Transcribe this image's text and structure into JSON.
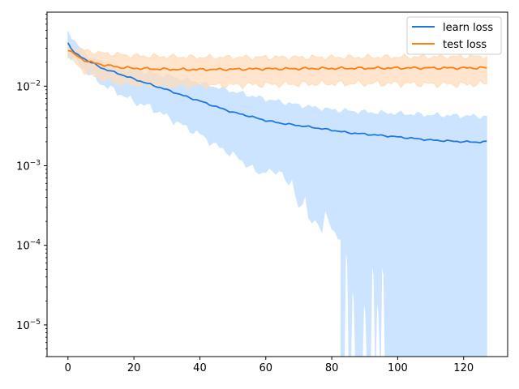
{
  "chart_data": {
    "type": "line",
    "title": "",
    "xlabel": "",
    "ylabel": "",
    "xlim": [
      -6.35,
      133.35
    ],
    "ylim": [
      4e-06,
      0.085
    ],
    "yscale": "log",
    "grid": false,
    "legend_position": "top-right",
    "x_ticks": [
      0,
      20,
      40,
      60,
      80,
      100,
      120
    ],
    "x_tick_labels": [
      "0",
      "20",
      "40",
      "60",
      "80",
      "100",
      "120"
    ],
    "y_ticks": [
      1e-05,
      0.0001,
      0.001,
      0.01
    ],
    "y_tick_labels": [
      "10",
      "10",
      "10",
      "10"
    ],
    "y_tick_exponents": [
      "−5",
      "−4",
      "−3",
      "−2"
    ],
    "series": [
      {
        "name": "learn loss",
        "color": "#1f77e0",
        "band_color": "#cce4ff",
        "x_range": [
          0,
          127
        ],
        "mean_key_x": [
          0,
          2,
          5,
          8,
          10,
          15,
          20,
          25,
          30,
          35,
          40,
          45,
          50,
          55,
          60,
          65,
          70,
          75,
          80,
          85,
          90,
          95,
          100,
          105,
          110,
          115,
          120,
          125,
          127
        ],
        "mean_key_y": [
          0.035,
          0.026,
          0.022,
          0.019,
          0.017,
          0.0145,
          0.0123,
          0.0105,
          0.009,
          0.0076,
          0.0065,
          0.0055,
          0.0047,
          0.0042,
          0.0037,
          0.0034,
          0.0032,
          0.003,
          0.0028,
          0.0026,
          0.0025,
          0.0024,
          0.0023,
          0.0022,
          0.0021,
          0.00205,
          0.002,
          0.00198,
          0.002
        ],
        "upper_key_x": [
          0,
          5,
          10,
          15,
          20,
          30,
          40,
          50,
          60,
          70,
          80,
          90,
          100,
          110,
          120,
          127
        ],
        "upper_key_y": [
          0.048,
          0.025,
          0.02,
          0.017,
          0.016,
          0.0135,
          0.011,
          0.0085,
          0.0068,
          0.0057,
          0.005,
          0.0047,
          0.0045,
          0.0043,
          0.0042,
          0.0041
        ],
        "lower_key_x": [
          0,
          3,
          6,
          10,
          15,
          20,
          25,
          30,
          35,
          40,
          45,
          50,
          55,
          58,
          60,
          62,
          65,
          67,
          68,
          70,
          72,
          73,
          75,
          77,
          78,
          80,
          82,
          82.8
        ],
        "lower_key_y": [
          0.025,
          0.02,
          0.015,
          0.011,
          0.0085,
          0.0065,
          0.0055,
          0.0042,
          0.0032,
          0.0025,
          0.0018,
          0.0014,
          0.001,
          0.0008,
          0.0009,
          0.0008,
          0.0009,
          0.0005,
          0.0007,
          0.0003,
          0.0004,
          0.0002,
          0.00022,
          0.00015,
          0.00025,
          0.00018,
          0.00012,
          0.00012
        ],
        "lower_spikes": [
          [
            84.5,
            9e-05
          ],
          [
            86.5,
            3e-05
          ],
          [
            90,
            2e-05
          ],
          [
            92.5,
            6e-05
          ],
          [
            94,
            2e-05
          ],
          [
            95.5,
            6e-05
          ]
        ]
      },
      {
        "name": "test loss",
        "color": "#ff7f0e",
        "band_color": "#ffdcbc",
        "x_range": [
          0,
          127
        ],
        "mean_key_x": [
          0,
          2,
          4,
          6,
          8,
          10,
          12,
          14,
          16,
          18,
          20,
          25,
          30,
          35,
          40,
          45,
          50,
          55,
          60,
          65,
          70,
          75,
          80,
          90,
          100,
          110,
          120,
          127
        ],
        "mean_key_y": [
          0.029,
          0.025,
          0.022,
          0.0205,
          0.0195,
          0.0188,
          0.0182,
          0.0177,
          0.0172,
          0.017,
          0.0168,
          0.0165,
          0.0163,
          0.0162,
          0.0162,
          0.0162,
          0.0163,
          0.0164,
          0.0165,
          0.0165,
          0.0166,
          0.0167,
          0.0167,
          0.0168,
          0.0169,
          0.0169,
          0.0169,
          0.017
        ],
        "upper_key_x": [
          0,
          5,
          10,
          15,
          20,
          30,
          40,
          60,
          80,
          100,
          127
        ],
        "upper_key_y": [
          0.032,
          0.028,
          0.026,
          0.025,
          0.024,
          0.0235,
          0.023,
          0.023,
          0.023,
          0.0232,
          0.0235
        ],
        "lower_key_x": [
          0,
          3,
          6,
          10,
          15,
          20,
          30,
          40,
          60,
          80,
          100,
          120,
          127
        ],
        "lower_key_y": [
          0.024,
          0.018,
          0.0145,
          0.0125,
          0.011,
          0.0105,
          0.01,
          0.0102,
          0.0105,
          0.0108,
          0.0108,
          0.0105,
          0.0108
        ]
      }
    ]
  }
}
